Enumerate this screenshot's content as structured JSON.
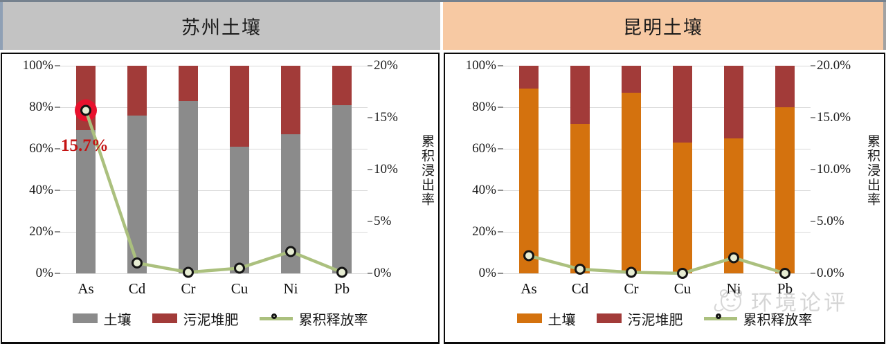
{
  "watermark": {
    "text": "环境论评"
  },
  "frame": {
    "top_edge_color": "#75818E",
    "left_edge_color": "#8FA0B5",
    "right_edge_color": "#A2A2A2"
  },
  "chart_data": [
    {
      "type": "bar",
      "subtype": "stacked-bars-with-line",
      "title": "苏州土壤",
      "header_color": "#C3C3C3",
      "categories": [
        "As",
        "Cd",
        "Cr",
        "Cu",
        "Ni",
        "Pb"
      ],
      "series": [
        {
          "name": "土壤",
          "type": "bar",
          "axis": "left",
          "color": "#8B8B8B",
          "values": [
            69,
            76,
            83,
            61,
            67,
            81
          ]
        },
        {
          "name": "污泥堆肥",
          "type": "bar",
          "axis": "left",
          "color": "#A23B39",
          "values": [
            31,
            24,
            17,
            39,
            33,
            19
          ]
        },
        {
          "name": "累积释放率",
          "type": "line",
          "axis": "right",
          "color": "#ABC07E",
          "marker_fill": "#E7EDD3",
          "marker_ring": "#141414",
          "values": [
            15.7,
            1.0,
            0.1,
            0.5,
            2.1,
            0.1
          ]
        }
      ],
      "y_left": {
        "min": 0,
        "max": 100,
        "ticks": [
          "100%",
          "80%",
          "60%",
          "40%",
          "20%",
          "0%"
        ]
      },
      "y_right": {
        "min": 0,
        "max": 20,
        "ticks": [
          "20%",
          "15%",
          "10%",
          "5%",
          "0%"
        ],
        "title": "累积浸出率"
      },
      "annotation": {
        "text": "15.7%",
        "category": "As",
        "category_index": 0,
        "text_color": "#C41414",
        "highlight_color": "#E8112D"
      },
      "legend_position": "bottom",
      "grid": true
    },
    {
      "type": "bar",
      "subtype": "stacked-bars-with-line",
      "title": "昆明土壤",
      "header_color": "#F7C9A3",
      "categories": [
        "As",
        "Cd",
        "Cr",
        "Cu",
        "Ni",
        "Pb"
      ],
      "series": [
        {
          "name": "土壤",
          "type": "bar",
          "axis": "left",
          "color": "#D4720E",
          "values": [
            89,
            72,
            87,
            63,
            65,
            80
          ]
        },
        {
          "name": "污泥堆肥",
          "type": "bar",
          "axis": "left",
          "color": "#A23B39",
          "values": [
            11,
            28,
            13,
            37,
            35,
            20
          ]
        },
        {
          "name": "累积释放率",
          "type": "line",
          "axis": "right",
          "color": "#ABC07E",
          "marker_fill": "#E7EDD3",
          "marker_ring": "#141414",
          "values": [
            1.7,
            0.4,
            0.1,
            0.0,
            1.5,
            0.0
          ]
        }
      ],
      "y_left": {
        "min": 0,
        "max": 100,
        "ticks": [
          "100%",
          "80%",
          "60%",
          "40%",
          "20%",
          "0%"
        ]
      },
      "y_right": {
        "min": 0,
        "max": 20,
        "ticks": [
          "20.0%",
          "15.0%",
          "10.0%",
          "5.0%",
          "0.0%"
        ],
        "title": "累积浸出率"
      },
      "annotation": null,
      "legend_position": "bottom",
      "grid": true
    }
  ]
}
